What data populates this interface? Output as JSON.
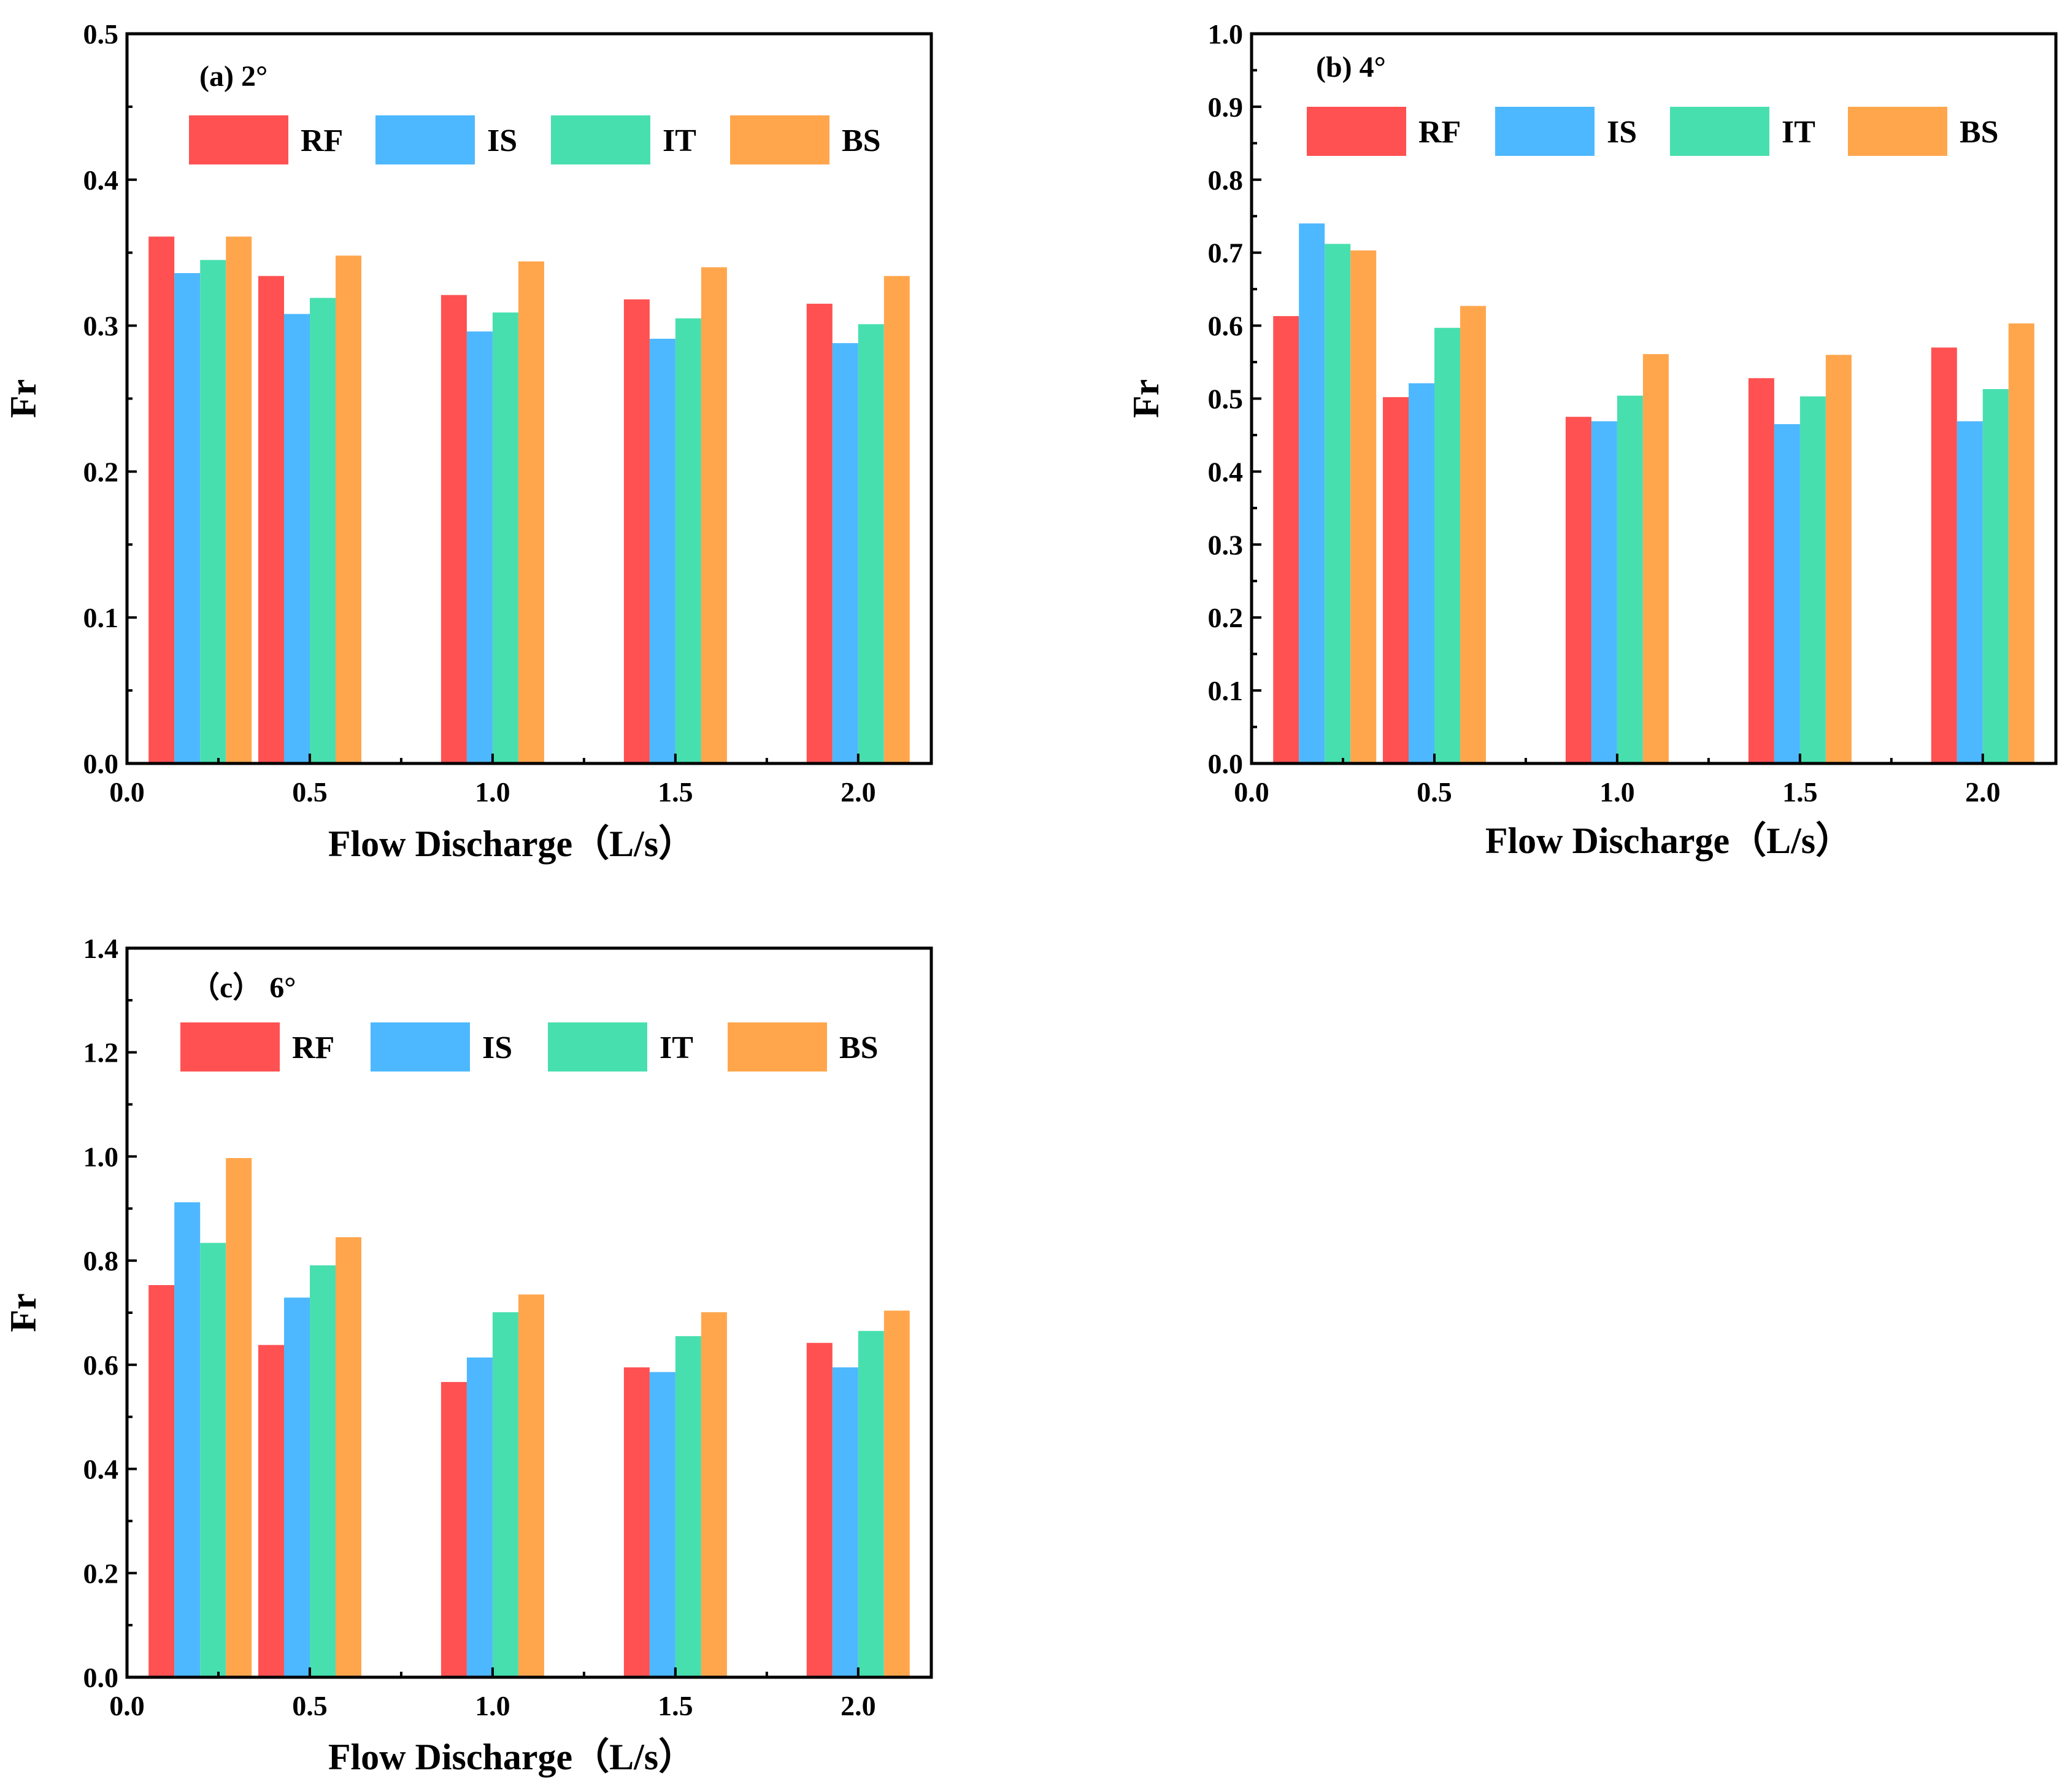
{
  "figure": {
    "colors": {
      "RF": "#ff5152",
      "IS": "#4db8ff",
      "IT": "#48dfaf",
      "BS": "#ffa64d"
    }
  },
  "chart_data": [
    {
      "type": "bar",
      "title": "(a)  2°",
      "xlabel": "Flow Discharge（L/s）",
      "ylabel": "Fr",
      "categories": [
        0.2,
        0.5,
        1.0,
        1.5,
        2.0
      ],
      "series": [
        {
          "name": "RF",
          "values": [
            0.361,
            0.334,
            0.321,
            0.318,
            0.315
          ]
        },
        {
          "name": "IS",
          "values": [
            0.336,
            0.308,
            0.296,
            0.291,
            0.288
          ]
        },
        {
          "name": "IT",
          "values": [
            0.345,
            0.319,
            0.309,
            0.305,
            0.301
          ]
        },
        {
          "name": "BS",
          "values": [
            0.361,
            0.348,
            0.344,
            0.34,
            0.334
          ]
        }
      ],
      "xlim": [
        0.0,
        2.2
      ],
      "ylim": [
        0.0,
        0.5
      ],
      "xticks": [
        "0.0",
        "0.5",
        "1.0",
        "1.5",
        "2.0"
      ],
      "yticks": [
        "0.0",
        "0.1",
        "0.2",
        "0.3",
        "0.4",
        "0.5"
      ],
      "grid": false,
      "legend": "top, horizontal"
    },
    {
      "type": "bar",
      "title": "(b)  4°",
      "xlabel": "Flow Discharge（L/s）",
      "ylabel": "Fr",
      "categories": [
        0.2,
        0.5,
        1.0,
        1.5,
        2.0
      ],
      "series": [
        {
          "name": "RF",
          "values": [
            0.613,
            0.502,
            0.475,
            0.528,
            0.57
          ]
        },
        {
          "name": "IS",
          "values": [
            0.74,
            0.521,
            0.469,
            0.465,
            0.469
          ]
        },
        {
          "name": "IT",
          "values": [
            0.712,
            0.597,
            0.504,
            0.503,
            0.513
          ]
        },
        {
          "name": "BS",
          "values": [
            0.703,
            0.627,
            0.561,
            0.56,
            0.603
          ]
        }
      ],
      "xlim": [
        0.0,
        2.2
      ],
      "ylim": [
        0.0,
        1.0
      ],
      "xticks": [
        "0.0",
        "0.5",
        "1.0",
        "1.5",
        "2.0"
      ],
      "yticks": [
        "0.0",
        "0.1",
        "0.2",
        "0.3",
        "0.4",
        "0.5",
        "0.6",
        "0.7",
        "0.8",
        "0.9",
        "1.0"
      ],
      "grid": false,
      "legend": "top, horizontal"
    },
    {
      "type": "bar",
      "title": "（c） 6°",
      "xlabel": "Flow Discharge（L/s）",
      "ylabel": "Fr",
      "categories": [
        0.2,
        0.5,
        1.0,
        1.5,
        2.0
      ],
      "series": [
        {
          "name": "RF",
          "values": [
            0.753,
            0.638,
            0.567,
            0.595,
            0.642
          ]
        },
        {
          "name": "IS",
          "values": [
            0.912,
            0.729,
            0.614,
            0.586,
            0.595
          ]
        },
        {
          "name": "IT",
          "values": [
            0.834,
            0.791,
            0.701,
            0.655,
            0.665
          ]
        },
        {
          "name": "BS",
          "values": [
            0.997,
            0.845,
            0.735,
            0.701,
            0.704
          ]
        }
      ],
      "xlim": [
        0.0,
        2.2
      ],
      "ylim": [
        0.0,
        1.4
      ],
      "xticks": [
        "0.0",
        "0.5",
        "1.0",
        "1.5",
        "2.0"
      ],
      "yticks": [
        "0.0",
        "0.2",
        "0.4",
        "0.6",
        "0.8",
        "1.0",
        "1.2",
        "1.4"
      ],
      "grid": false,
      "legend": "top, horizontal"
    }
  ]
}
